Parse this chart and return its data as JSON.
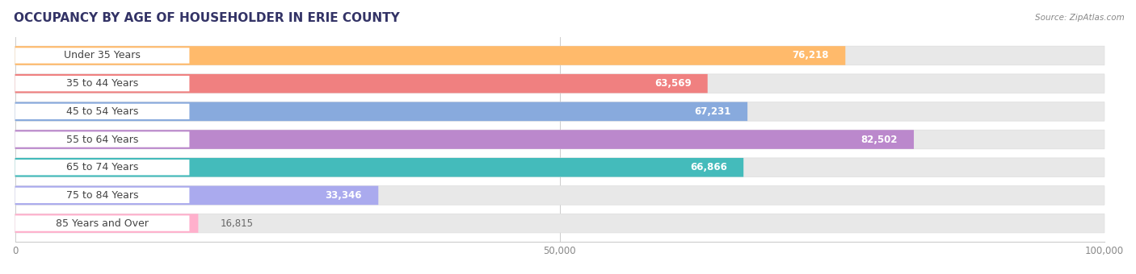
{
  "title": "OCCUPANCY BY AGE OF HOUSEHOLDER IN ERIE COUNTY",
  "source": "Source: ZipAtlas.com",
  "categories": [
    "Under 35 Years",
    "35 to 44 Years",
    "45 to 54 Years",
    "55 to 64 Years",
    "65 to 74 Years",
    "75 to 84 Years",
    "85 Years and Over"
  ],
  "values": [
    76218,
    63569,
    67231,
    82502,
    66866,
    33346,
    16815
  ],
  "bar_colors": [
    "#FFBA6B",
    "#F08080",
    "#88AADD",
    "#BB88CC",
    "#44BBBB",
    "#AAAAEE",
    "#FFB0CC"
  ],
  "xlim": [
    0,
    100000
  ],
  "xticks": [
    0,
    50000,
    100000
  ],
  "xticklabels": [
    "0",
    "50,000",
    "100,000"
  ],
  "background_color": "#ffffff",
  "bar_bg_color": "#e8e8e8",
  "title_fontsize": 11,
  "label_fontsize": 9,
  "value_fontsize": 8.5,
  "title_color": "#333366",
  "label_text_color": "#444444",
  "value_color_inside": "#ffffff",
  "value_color_outside": "#666666",
  "inside_threshold": 25000
}
